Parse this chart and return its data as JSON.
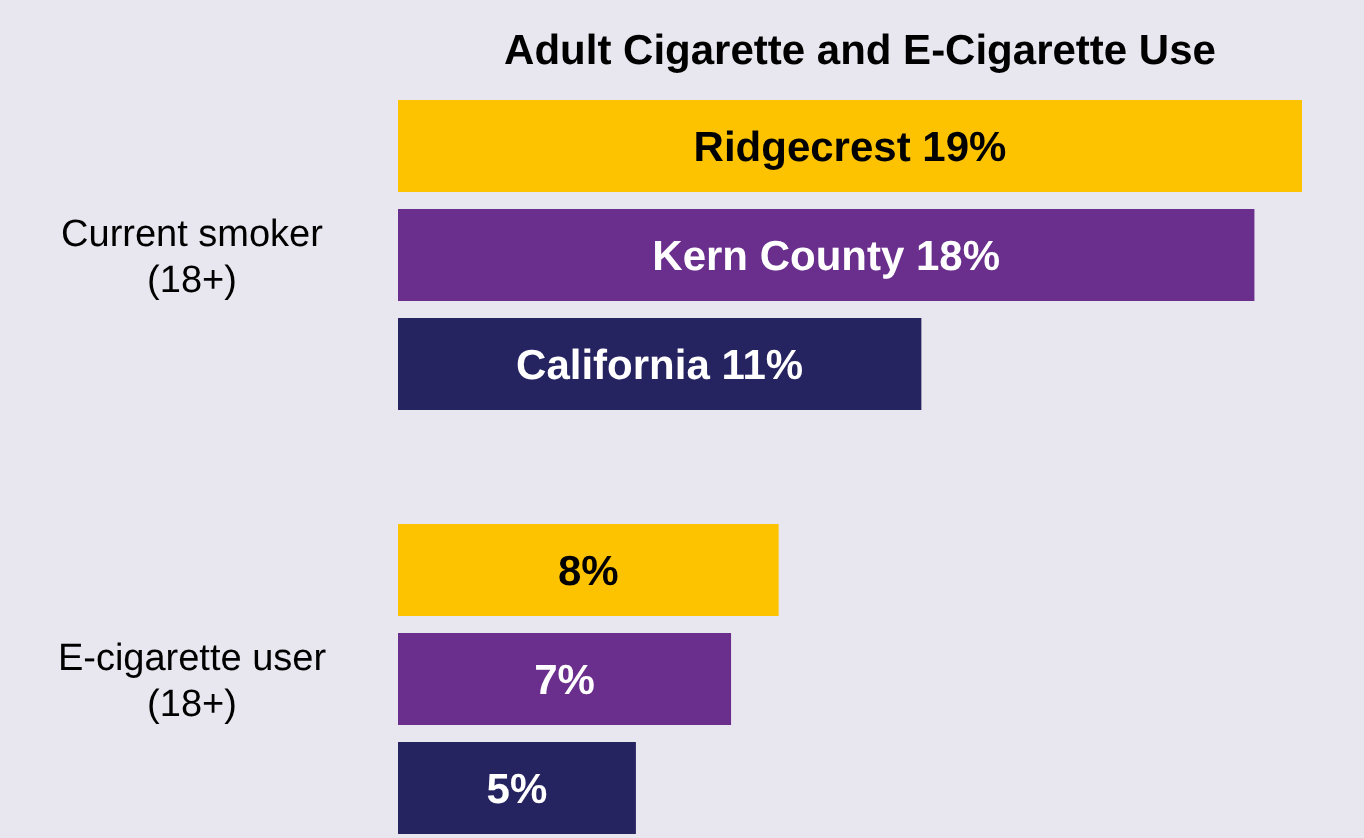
{
  "chart_data": {
    "type": "bar",
    "orientation": "horizontal",
    "title": "Adult Cigarette and E-Cigarette Use",
    "categories": [
      "Current smoker (18+)",
      "E-cigarette user (18+)"
    ],
    "series": [
      {
        "color": "#fdc300",
        "values": [
          19,
          8
        ],
        "value_labels": [
          "Ridgecrest 19%",
          "8%"
        ]
      },
      {
        "color": "#6a2e8c",
        "values": [
          18,
          7
        ],
        "value_labels": [
          "Kern County 18%",
          "7%"
        ]
      },
      {
        "color": "#262361",
        "values": [
          11,
          5
        ],
        "value_labels": [
          "California 11%",
          "5%"
        ]
      }
    ]
  }
}
